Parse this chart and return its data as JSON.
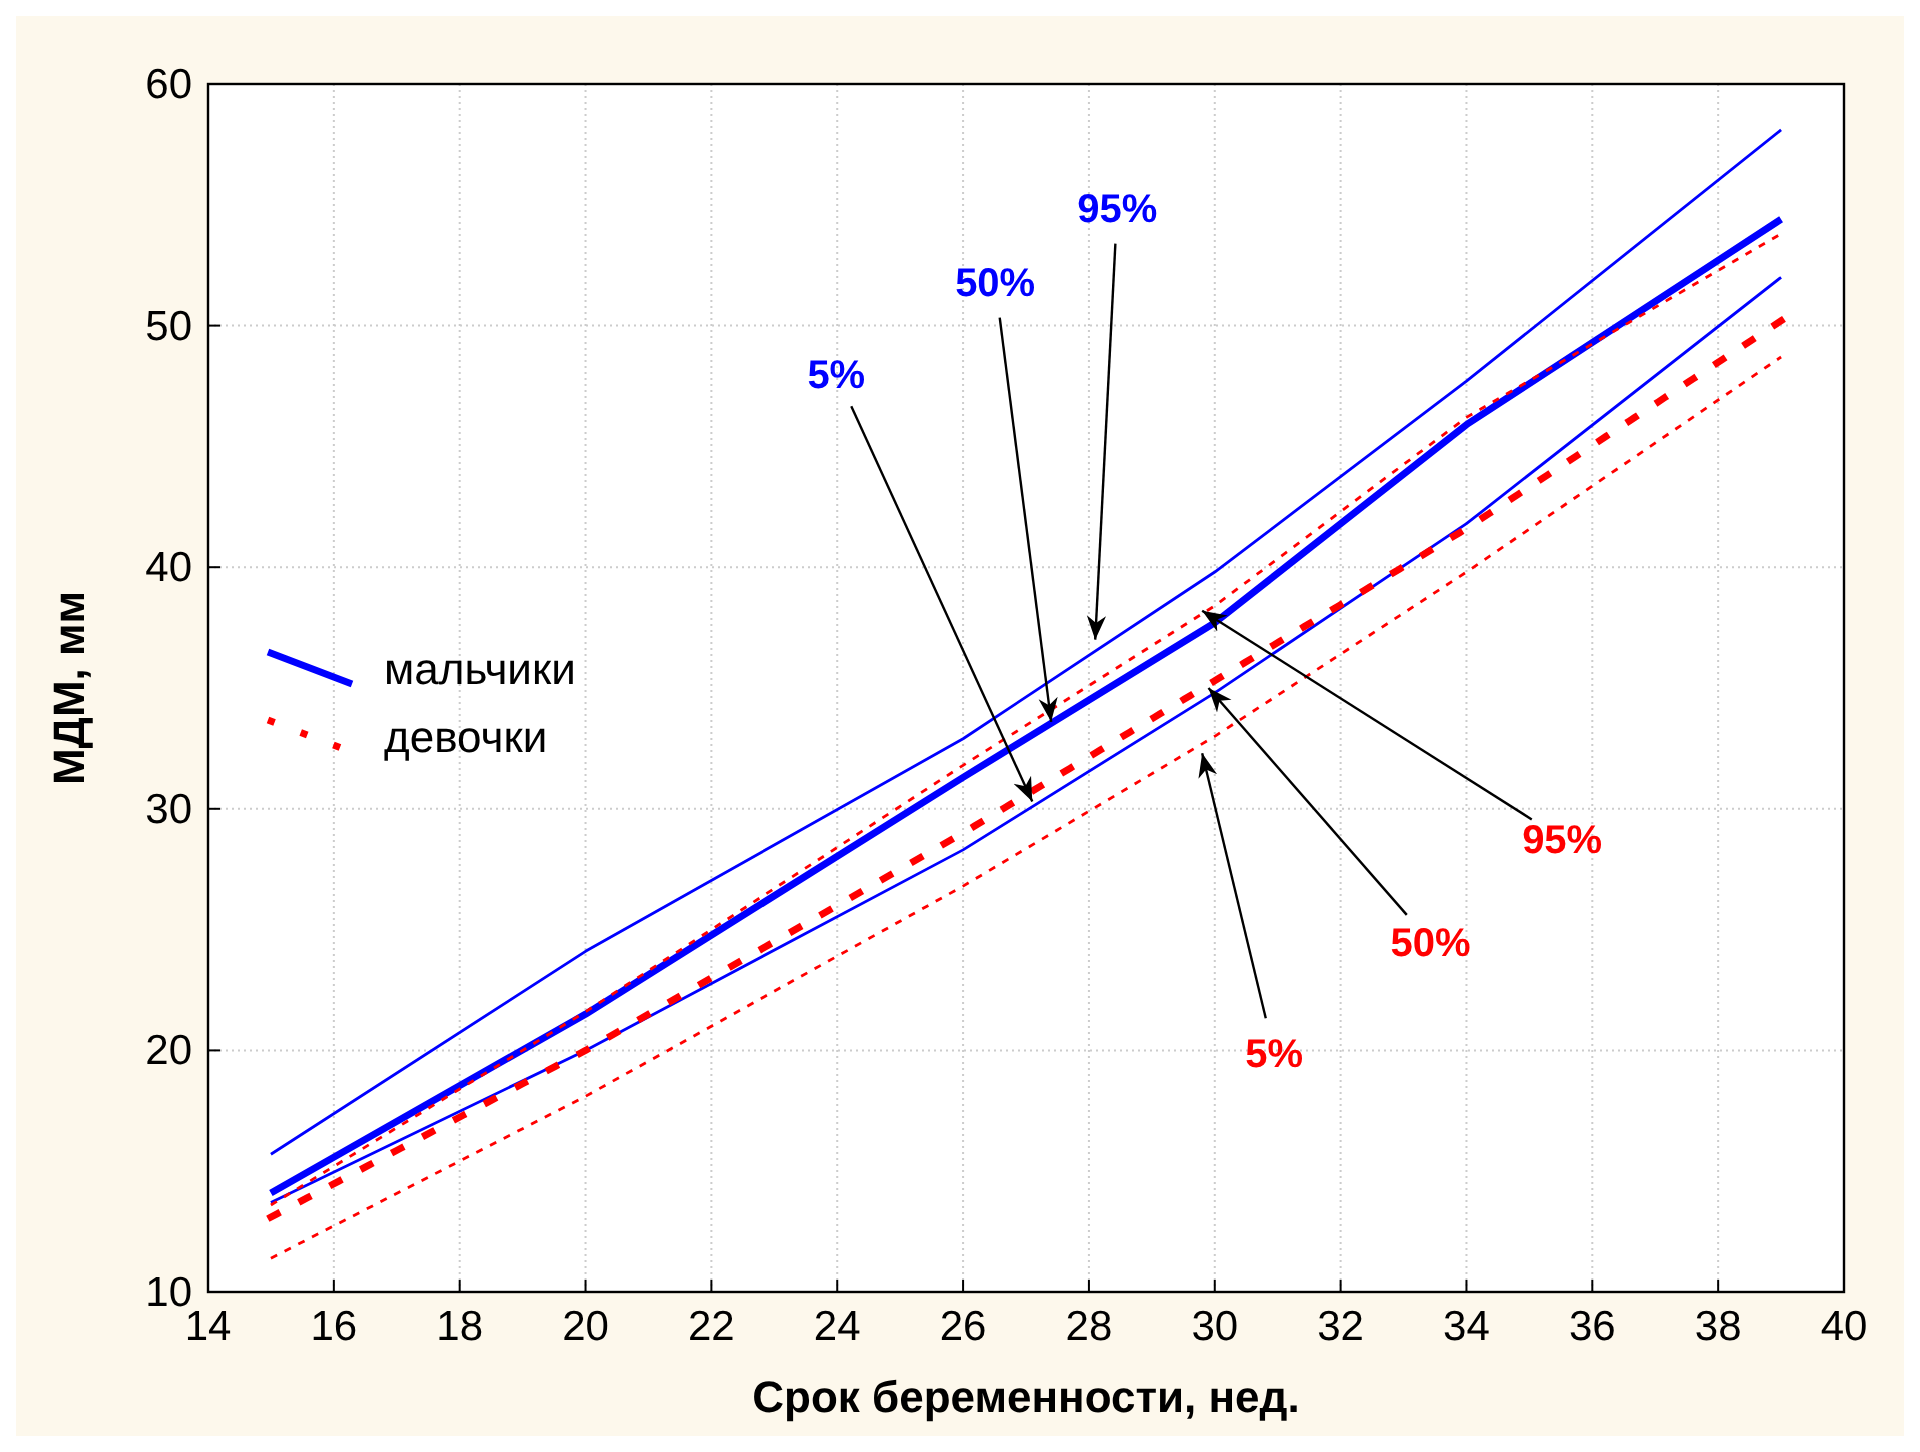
{
  "chart_data": {
    "type": "line",
    "xlabel": "Срок беременности, нед.",
    "ylabel": "МДМ, мм",
    "xlim": [
      14,
      40
    ],
    "ylim": [
      10,
      60
    ],
    "xticks": [
      14,
      16,
      18,
      20,
      22,
      24,
      26,
      28,
      30,
      32,
      34,
      36,
      38,
      40
    ],
    "yticks": [
      10,
      20,
      30,
      40,
      50,
      60
    ],
    "grid": true,
    "legend": "left",
    "series": [
      {
        "color": "#0000ff",
        "line_style": "solid",
        "x": [
          15,
          20,
          26,
          30,
          34,
          39
        ],
        "values": [
          13.7,
          20.0,
          28.3,
          34.8,
          41.8,
          52.0
        ]
      },
      {
        "name": "мальчики",
        "color": "#0000ff",
        "line_style": "solid",
        "x": [
          15,
          20,
          26,
          30,
          34,
          39
        ],
        "values": [
          14.1,
          21.5,
          31.3,
          37.7,
          45.9,
          54.4
        ]
      },
      {
        "color": "#0000ff",
        "line_style": "solid",
        "x": [
          15,
          20,
          26,
          30,
          34,
          39
        ],
        "values": [
          15.7,
          24.1,
          32.9,
          39.8,
          47.7,
          58.1
        ]
      },
      {
        "color": "#ff0000",
        "line_style": "dashed",
        "x": [
          15,
          20,
          26,
          30,
          34,
          39
        ],
        "values": [
          11.4,
          18.1,
          26.8,
          33.0,
          39.8,
          48.7
        ]
      },
      {
        "name": "девочки",
        "color": "#ff0000",
        "line_style": "dotted",
        "x": [
          15,
          20,
          26,
          30,
          34,
          39
        ],
        "values": [
          13.1,
          20.0,
          29.0,
          35.3,
          41.6,
          50.2
        ]
      },
      {
        "color": "#ff0000",
        "line_style": "dashed",
        "x": [
          15,
          20,
          26,
          30,
          34,
          39
        ],
        "values": [
          13.6,
          21.6,
          31.8,
          38.4,
          46.2,
          53.8
        ]
      }
    ],
    "annotations": [
      {
        "text": "5%",
        "x": 27.1,
        "y": 30.3
      },
      {
        "text": "50%",
        "x": 27.4,
        "y": 33.6
      },
      {
        "text": "95%",
        "x": 28.1,
        "y": 37.0
      },
      {
        "text": "95%",
        "x": 29.8,
        "y": 38.2
      },
      {
        "text": "50%",
        "x": 29.9,
        "y": 35.0
      },
      {
        "text": "5%",
        "x": 29.8,
        "y": 32.3
      }
    ]
  }
}
